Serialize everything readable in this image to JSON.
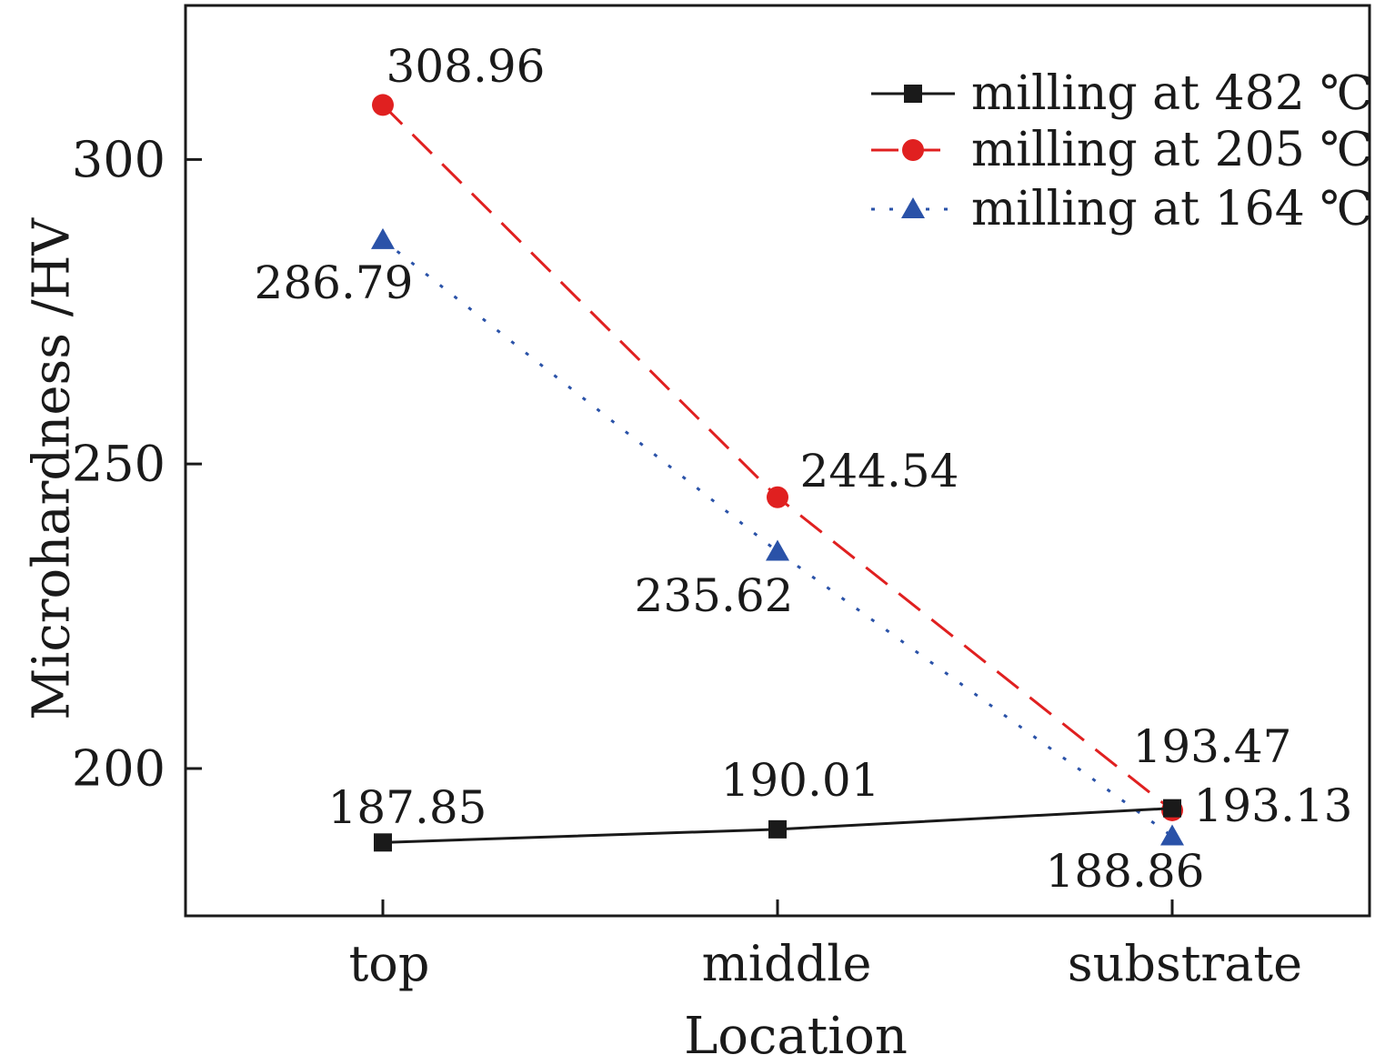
{
  "chart_data": {
    "type": "line",
    "title": "",
    "xlabel": "Location",
    "ylabel": "Microhardness /HV",
    "categories": [
      "top",
      "middle",
      "substrate"
    ],
    "ylim": [
      175.8,
      325.3
    ],
    "yticks": [
      200,
      250,
      300
    ],
    "grid": false,
    "legend_position": "top-right",
    "series": [
      {
        "name": "milling at 482 ℃",
        "color": "#1a1a1a",
        "line_style": "solid",
        "marker": "square",
        "values": [
          187.85,
          190.01,
          193.47
        ],
        "labels": [
          "187.85",
          "190.01",
          "193.47"
        ]
      },
      {
        "name": "milling at 205 ℃",
        "color": "#e02020",
        "line_style": "dashed",
        "marker": "circle",
        "values": [
          308.96,
          244.54,
          193.13
        ],
        "labels": [
          "308.96",
          "244.54",
          "193.13"
        ]
      },
      {
        "name": "milling at 164 ℃",
        "color": "#2a52a8",
        "line_style": "dotted",
        "marker": "triangle",
        "values": [
          286.79,
          235.62,
          188.86
        ],
        "labels": [
          "286.79",
          "235.62",
          "188.86"
        ]
      }
    ]
  }
}
